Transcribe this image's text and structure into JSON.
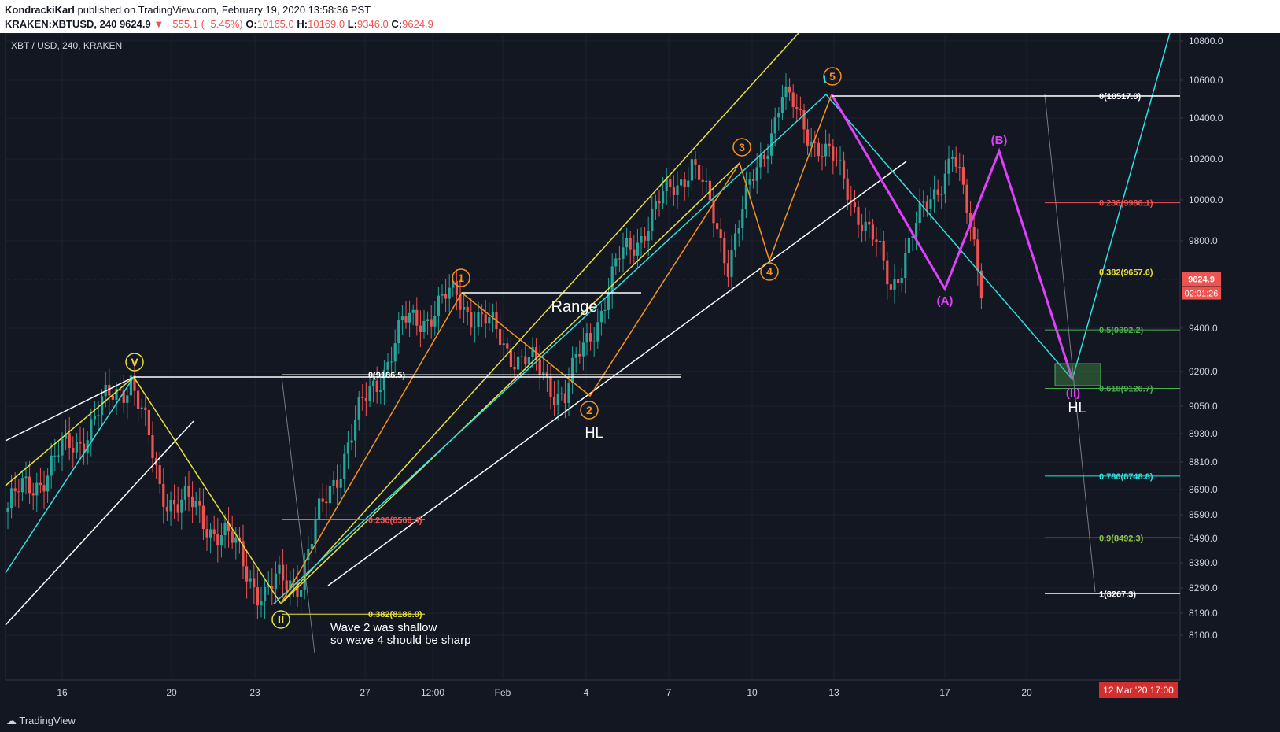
{
  "header": {
    "author": "KondrackiKarl",
    "published": "published on TradingView.com, February 19, 2020 13:58:36 PST",
    "symbol": "KRAKEN:XBTUSD, 240",
    "last": "9624.9",
    "change": "−555.1 (−5.45%)",
    "o_label": "O:",
    "o": "10165.0",
    "h_label": "H:",
    "h": "10169.0",
    "l_label": "L:",
    "l": "9346.0",
    "c_label": "C:",
    "c": "9624.9"
  },
  "footer": {
    "brand": "TradingView"
  },
  "colors": {
    "up": "#26a69a",
    "down": "#ef5350",
    "yellow": "#e6e03c",
    "cyan": "#2fe0e0",
    "orange": "#f7931a",
    "magenta": "#e040fb",
    "white": "#ffffff",
    "grid": "#1e2230",
    "axis_text": "#d1d4dc"
  },
  "chart_data": {
    "type": "candlestick",
    "title": "XBT / USD, 240, KRAKEN",
    "x_ticks": [
      "16",
      "20",
      "23",
      "27",
      "12:00",
      "Feb",
      "4",
      "7",
      "10",
      "13",
      "17",
      "20"
    ],
    "y_ticks": [
      10800,
      10600,
      10400,
      10200,
      10000,
      9800,
      9400,
      9200,
      9050,
      8930,
      8810,
      8690,
      8590,
      8490,
      8390,
      8290,
      8190,
      8100
    ],
    "ylim": [
      8045,
      10900
    ],
    "price_line": {
      "value": 9624.9,
      "label": "9624.9",
      "countdown": "02:01:26"
    },
    "cursor_date": "12 Mar '20   17:00",
    "path_anchors": [
      {
        "i": 0,
        "v": 8600
      },
      {
        "i": 20,
        "v": 8900
      },
      {
        "i": 35,
        "v": 9186
      },
      {
        "i": 43,
        "v": 8700
      },
      {
        "i": 60,
        "v": 8520
      },
      {
        "i": 72,
        "v": 8260
      },
      {
        "i": 82,
        "v": 8350
      },
      {
        "i": 95,
        "v": 8900
      },
      {
        "i": 110,
        "v": 9400
      },
      {
        "i": 125,
        "v": 9550
      },
      {
        "i": 140,
        "v": 9300
      },
      {
        "i": 155,
        "v": 9100
      },
      {
        "i": 170,
        "v": 9700
      },
      {
        "i": 190,
        "v": 10190
      },
      {
        "i": 200,
        "v": 9720
      },
      {
        "i": 215,
        "v": 10517
      },
      {
        "i": 232,
        "v": 10100
      },
      {
        "i": 245,
        "v": 9600
      },
      {
        "i": 262,
        "v": 10230
      },
      {
        "i": 270,
        "v": 9625
      }
    ],
    "fib_levels": [
      {
        "label": "0(10517.0)",
        "v": 10517,
        "color": "#ffffff"
      },
      {
        "label": "0.236(9986.1)",
        "v": 9986.1,
        "color": "#ef5350"
      },
      {
        "label": "0.382(9657.6)",
        "v": 9657.6,
        "color": "#e6e03c"
      },
      {
        "label": "0.5(9392.2)",
        "v": 9392.2,
        "color": "#4caf50"
      },
      {
        "label": "0.618(9126.7)",
        "v": 9126.7,
        "color": "#4caf50"
      },
      {
        "label": "0.786(8748.8)",
        "v": 8748.8,
        "color": "#2fe0e0"
      },
      {
        "label": "0.9(8492.3)",
        "v": 8492.3,
        "color": "#8bc34a"
      },
      {
        "label": "1(8267.3)",
        "v": 8267.3,
        "color": "#ffffff"
      }
    ],
    "fib_left": [
      {
        "label": "0(9186.5)",
        "v": 9186.5,
        "color": "#ffffff"
      },
      {
        "label": "0.236(8568.4)",
        "v": 8568.4,
        "color": "#ef5350"
      },
      {
        "label": "0.382(8186.0)",
        "v": 8186.0,
        "color": "#e6e03c"
      }
    ],
    "wave_labels": [
      {
        "text": "V",
        "color": "#e6e03c"
      },
      {
        "text": "II",
        "color": "#e6e03c"
      },
      {
        "text": "1",
        "color": "#f7931a"
      },
      {
        "text": "2",
        "color": "#f7931a"
      },
      {
        "text": "3",
        "color": "#f7931a"
      },
      {
        "text": "4",
        "color": "#f7931a"
      },
      {
        "text": "5",
        "color": "#f7931a"
      },
      {
        "text": "I",
        "color": "#2fe0e0"
      },
      {
        "text": "(A)",
        "color": "#e040fb"
      },
      {
        "text": "(B)",
        "color": "#e040fb"
      },
      {
        "text": "(II)",
        "color": "#e040fb"
      }
    ],
    "annotations": [
      "Range",
      "HL",
      "HL",
      "Wave 2 was shallow",
      "so wave 4 should be sharp"
    ]
  }
}
